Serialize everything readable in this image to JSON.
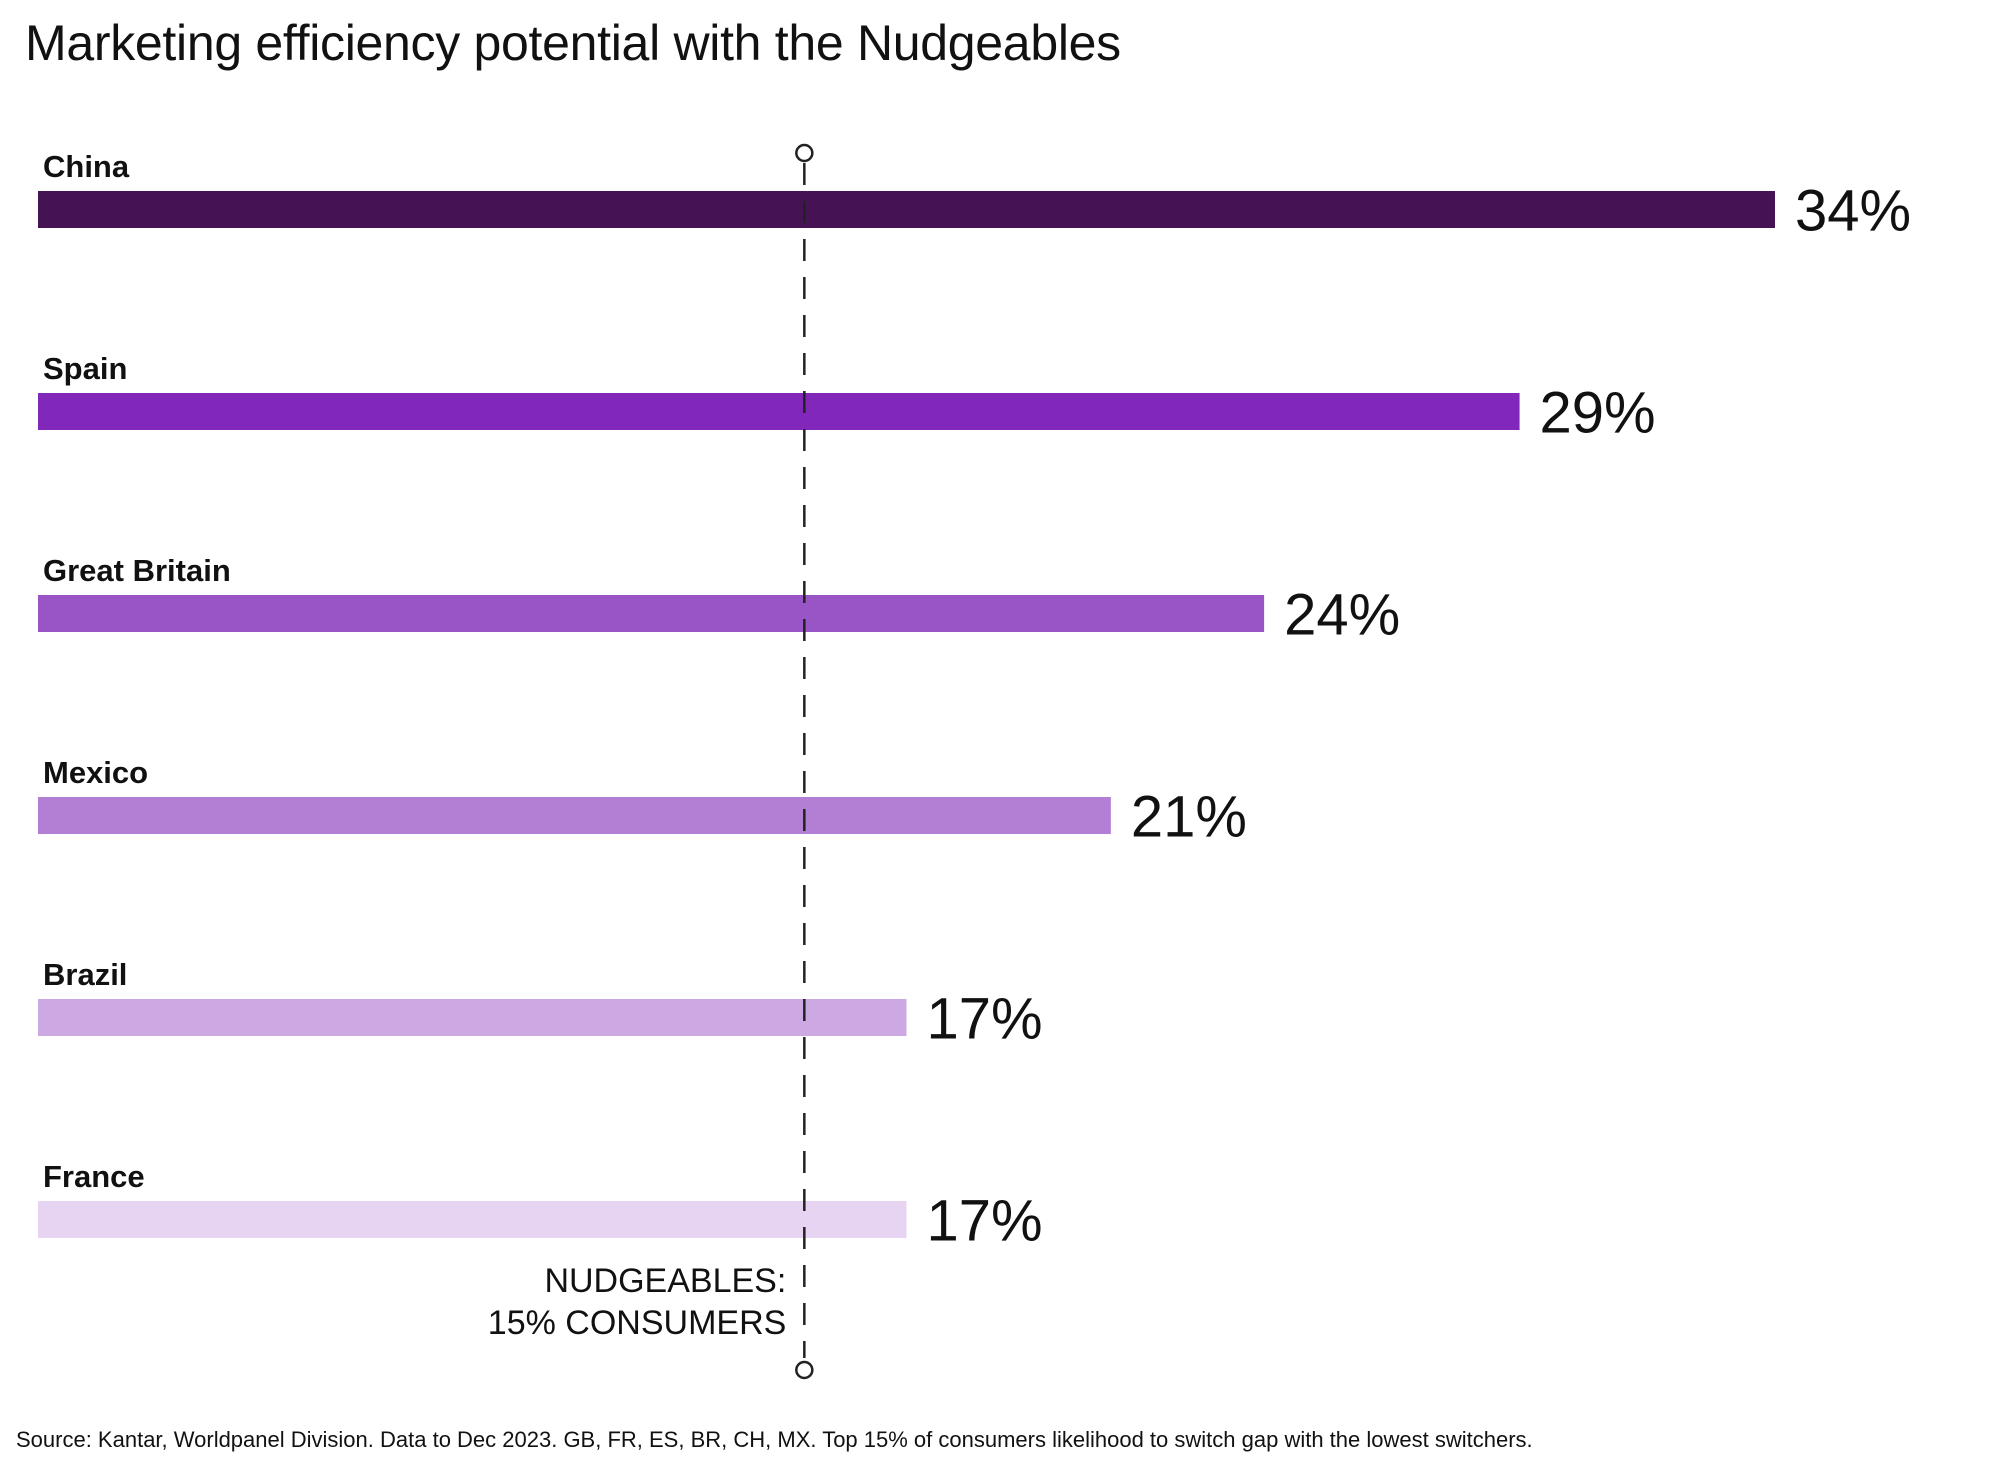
{
  "chart_data": {
    "type": "bar",
    "orientation": "horizontal",
    "title": "Marketing efficiency potential with the Nudgeables",
    "categories": [
      "China",
      "Spain",
      "Great Britain",
      "Mexico",
      "Brazil",
      "France"
    ],
    "values": [
      34,
      29,
      24,
      21,
      17,
      17
    ],
    "value_labels": [
      "34%",
      "29%",
      "24%",
      "21%",
      "17%",
      "17%"
    ],
    "colors": [
      "#451254",
      "#8128BA",
      "#9955C6",
      "#B37FD5",
      "#CDA9E3",
      "#E6D4F2"
    ],
    "xlim": [
      0,
      34
    ],
    "xlabel": "",
    "ylabel": "",
    "grid": false,
    "legend": "none",
    "reference_line": {
      "value": 15,
      "style": "dashed",
      "label_line1": "NUDGEABLES:",
      "label_line2": "15% CONSUMERS"
    }
  },
  "source": "Source: Kantar, Worldpanel Division. Data to Dec 2023. GB, FR, ES, BR, CH, MX. Top 15% of consumers likelihood to switch gap with the lowest switchers."
}
